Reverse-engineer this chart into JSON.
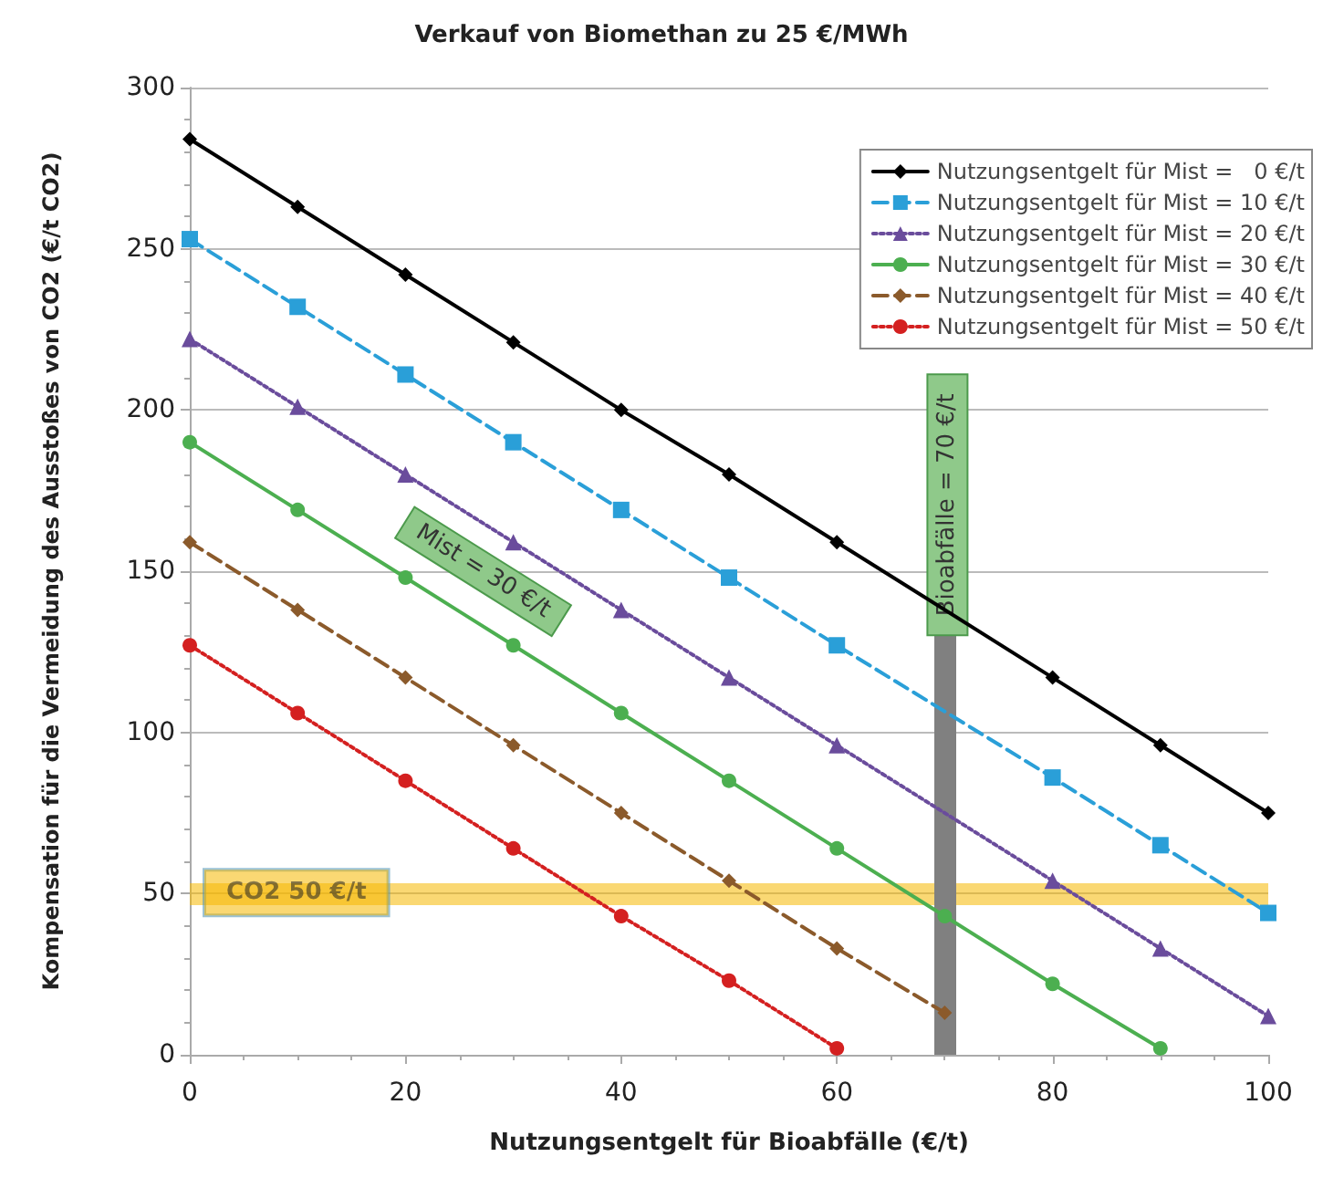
{
  "chart_data": {
    "type": "line",
    "title": "Verkauf von Biomethan zu 25 €/MWh",
    "xlabel": "Nutzungsentgelt für Bioabfälle (€/t)",
    "ylabel": "Kompensation für die Vermeidung des Ausstoßes von CO2 (€/t CO2)",
    "x": [
      0,
      10,
      20,
      30,
      40,
      50,
      60,
      70,
      80,
      90,
      100
    ],
    "series": [
      {
        "name": "Nutzungsentgelt für Mist =   0 €/t",
        "color": "#000000",
        "marker": "diamond",
        "line_style": "solid",
        "values": [
          284,
          263,
          242,
          221,
          200,
          180,
          159,
          null,
          117,
          96,
          75
        ]
      },
      {
        "name": "Nutzungsentgelt für Mist = 10 €/t",
        "color": "#2a9fd8",
        "marker": "square",
        "line_style": "dashed",
        "values": [
          253,
          232,
          211,
          190,
          169,
          148,
          127,
          null,
          86,
          65,
          44
        ]
      },
      {
        "name": "Nutzungsentgelt für Mist = 20 €/t",
        "color": "#6a4c9c",
        "marker": "triangle",
        "line_style": "dotted",
        "values": [
          222,
          201,
          180,
          159,
          138,
          117,
          96,
          null,
          54,
          33,
          12
        ]
      },
      {
        "name": "Nutzungsentgelt für Mist = 30 €/t",
        "color": "#4caf50",
        "marker": "circle",
        "line_style": "solid",
        "values": [
          190,
          169,
          148,
          127,
          106,
          85,
          64,
          43,
          22,
          2,
          null
        ]
      },
      {
        "name": "Nutzungsentgelt für Mist = 40 €/t",
        "color": "#8b5a2b",
        "marker": "diamond",
        "line_style": "dashed",
        "values": [
          159,
          138,
          117,
          96,
          75,
          54,
          33,
          13,
          null,
          null,
          null
        ]
      },
      {
        "name": "Nutzungsentgelt für Mist = 50 €/t",
        "color": "#d42020",
        "marker": "circle",
        "line_style": "dotted",
        "values": [
          127,
          106,
          85,
          64,
          43,
          23,
          2,
          null,
          null,
          null,
          null
        ]
      }
    ],
    "xlim": [
      0,
      100
    ],
    "xticks": [
      0,
      20,
      40,
      60,
      80,
      100
    ],
    "ylim": [
      0,
      300
    ],
    "yticks": [
      0,
      50,
      100,
      150,
      200,
      250,
      300
    ],
    "grid": "y",
    "legend": "top right",
    "ref_lines": [
      {
        "axis": "y",
        "value": 50,
        "label": "CO2 50 €/t",
        "color": "#f5b800"
      },
      {
        "axis": "x",
        "value": 70,
        "label": "Bioabfälle = 70 €/t",
        "color": "#808080"
      }
    ],
    "annotations": [
      {
        "text": "Mist = 30 €/t",
        "x": 25,
        "y": 138
      }
    ]
  }
}
